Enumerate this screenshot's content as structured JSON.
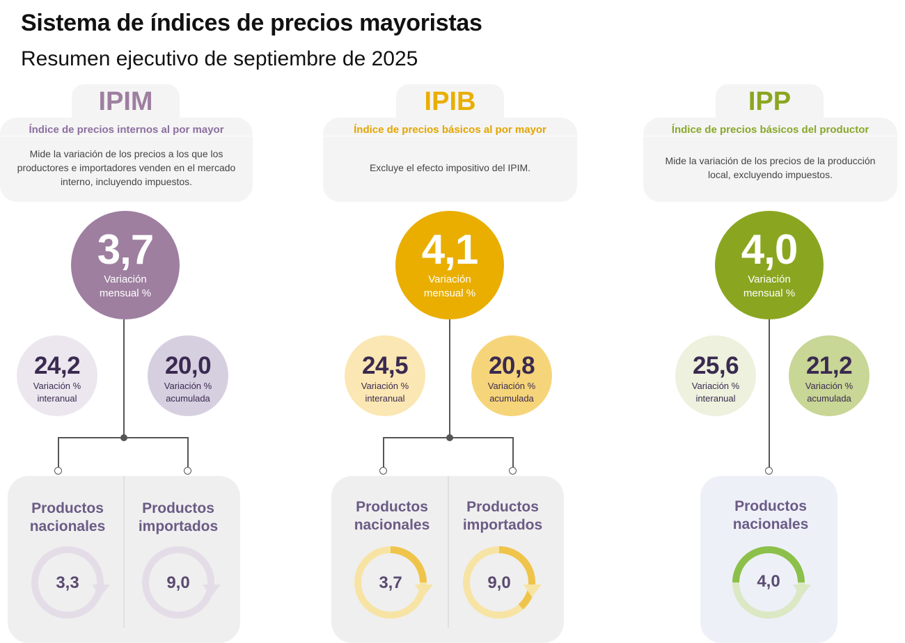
{
  "header": {
    "title": "Sistema de índices de precios mayoristas",
    "subtitle": "Resumen ejecutivo de septiembre de 2025"
  },
  "colors": {
    "ipim": "#9e7fa0",
    "ipib": "#e9ae00",
    "ipp": "#8aa620"
  },
  "ipim": {
    "abbr": "IPIM",
    "name": "Índice de precios internos al por mayor",
    "description": "Mide la variación de los precios a los que los productores e importadores venden en el mercado interno, incluyendo impuestos.",
    "monthly": {
      "value": "3,7",
      "label_1": "Variación",
      "label_2": "mensual %"
    },
    "yoy": {
      "value": "24,2",
      "label_1": "Variación %",
      "label_2": "interanual"
    },
    "ytd": {
      "value": "20,0",
      "label_1": "Variación %",
      "label_2": "acumulada"
    },
    "products": [
      {
        "label_1": "Productos",
        "label_2": "nacionales",
        "value": "3,3"
      },
      {
        "label_1": "Productos",
        "label_2": "importados",
        "value": "9,0"
      }
    ]
  },
  "ipib": {
    "abbr": "IPIB",
    "name": "Índice de precios básicos al por mayor",
    "description": "Excluye el efecto impositivo del IPIM.",
    "monthly": {
      "value": "4,1",
      "label_1": "Variación",
      "label_2": "mensual %"
    },
    "yoy": {
      "value": "24,5",
      "label_1": "Variación %",
      "label_2": "interanual"
    },
    "ytd": {
      "value": "20,8",
      "label_1": "Variación %",
      "label_2": "acumulada"
    },
    "products": [
      {
        "label_1": "Productos",
        "label_2": "nacionales",
        "value": "3,7"
      },
      {
        "label_1": "Productos",
        "label_2": "importados",
        "value": "9,0"
      }
    ]
  },
  "ipp": {
    "abbr": "IPP",
    "name": "Índice de precios básicos del productor",
    "description": "Mide la variación de los precios de la producción local, excluyendo impuestos.",
    "monthly": {
      "value": "4,0",
      "label_1": "Variación",
      "label_2": "mensual %"
    },
    "yoy": {
      "value": "25,6",
      "label_1": "Variación %",
      "label_2": "interanual"
    },
    "ytd": {
      "value": "21,2",
      "label_1": "Variación %",
      "label_2": "acumulada"
    },
    "products": [
      {
        "label_1": "Productos",
        "label_2": "nacionales",
        "value": "4,0"
      }
    ]
  }
}
